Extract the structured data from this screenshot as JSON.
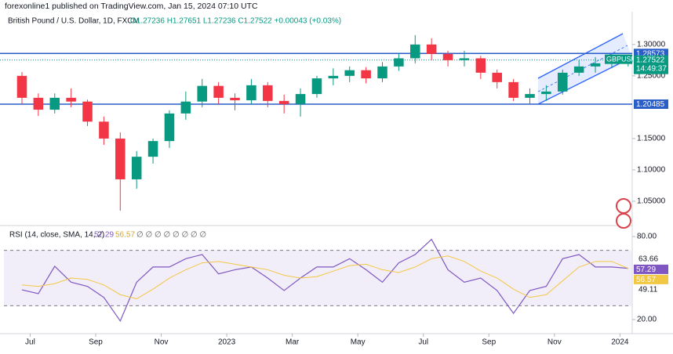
{
  "header": {
    "publisher": "forexonline1 published on TradingView.com, Jan 15, 2024 07:10 UTC",
    "symbol": "British Pound / U.S. Dollar, 1D, FXCM",
    "ohlc": "O1.27236 H1.27651 L1.27236 C1.27522 +0.00043 (+0.03%)"
  },
  "chart_data": [
    {
      "type": "candlestick",
      "open": [
        1.25,
        1.215,
        1.196,
        1.215,
        1.209,
        1.177,
        1.15,
        1.085,
        1.121,
        1.146,
        1.19,
        1.209,
        1.234,
        1.215,
        1.211,
        1.235,
        1.21,
        1.205,
        1.221,
        1.246,
        1.25,
        1.259,
        1.246,
        1.265,
        1.278,
        1.3,
        1.285,
        1.275,
        1.278,
        1.255,
        1.24,
        1.215,
        1.221,
        1.225,
        1.255,
        1.265,
        1.27,
        1.272
      ],
      "high": [
        1.256,
        1.222,
        1.222,
        1.23,
        1.212,
        1.185,
        1.16,
        1.13,
        1.15,
        1.195,
        1.225,
        1.245,
        1.24,
        1.222,
        1.245,
        1.24,
        1.22,
        1.23,
        1.25,
        1.262,
        1.265,
        1.264,
        1.272,
        1.285,
        1.315,
        1.31,
        1.29,
        1.29,
        1.282,
        1.26,
        1.245,
        1.23,
        1.235,
        1.26,
        1.275,
        1.28,
        1.285,
        1.282
      ],
      "low": [
        1.205,
        1.186,
        1.19,
        1.2,
        1.17,
        1.14,
        1.035,
        1.07,
        1.11,
        1.135,
        1.18,
        1.2,
        1.205,
        1.195,
        1.205,
        1.2,
        1.19,
        1.185,
        1.215,
        1.235,
        1.24,
        1.238,
        1.24,
        1.258,
        1.27,
        1.275,
        1.265,
        1.265,
        1.245,
        1.23,
        1.21,
        1.205,
        1.21,
        1.22,
        1.25,
        1.255,
        1.262,
        1.265
      ],
      "close": [
        1.215,
        1.196,
        1.215,
        1.209,
        1.177,
        1.15,
        1.085,
        1.121,
        1.146,
        1.19,
        1.209,
        1.234,
        1.215,
        1.211,
        1.235,
        1.21,
        1.205,
        1.221,
        1.246,
        1.25,
        1.259,
        1.246,
        1.265,
        1.278,
        1.3,
        1.285,
        1.275,
        1.278,
        1.255,
        1.24,
        1.215,
        1.221,
        1.225,
        1.255,
        1.265,
        1.27,
        1.272,
        1.275
      ],
      "up_color": "#089981",
      "down_color": "#f23645",
      "ylim": [
        1.015,
        1.336
      ],
      "yticks": [
        {
          "value": 1.05,
          "label": "1.05000"
        },
        {
          "value": 1.1,
          "label": "1.10000"
        },
        {
          "value": 1.15,
          "label": "1.15000"
        },
        {
          "value": 1.25,
          "label": "1.25000"
        },
        {
          "value": 1.3,
          "label": "1.30000"
        }
      ],
      "levels": [
        1.28573,
        1.20485
      ],
      "level_color": "#2a5ec8",
      "last": 1.27522,
      "last_color": "#089981",
      "symbol_tag": "GBPUSD",
      "countdown": "14:49:37"
    },
    {
      "type": "line",
      "legend": "RSI (14, close, SMA, 14, 2)",
      "legend_extra": "∅ ∅ ∅ ∅ ∅ ∅ ∅ ∅",
      "series": [
        {
          "color": "#7e57c2",
          "last": 57.29,
          "values": [
            41.5,
            38.7,
            58.5,
            47,
            44,
            36,
            19,
            47,
            58,
            58,
            64,
            67,
            53,
            56,
            58,
            50,
            41,
            50,
            58,
            58,
            64,
            56,
            47,
            61,
            67,
            78,
            56,
            47,
            50,
            41,
            24.5,
            41,
            44,
            64,
            67,
            58,
            58,
            57
          ]
        },
        {
          "color": "#f2c744",
          "last": 56.57,
          "values": [
            45,
            44,
            46,
            50,
            49,
            45,
            38,
            35,
            42,
            50,
            56,
            61,
            62,
            60,
            58,
            56,
            52,
            50,
            51,
            55,
            59,
            60,
            56,
            54,
            58,
            64,
            66,
            62,
            55,
            50,
            42,
            36,
            38,
            48,
            58,
            62,
            62,
            57
          ]
        }
      ],
      "band": [
        30,
        70
      ],
      "band_color": "#7e57c2",
      "tags": [
        63.66,
        49.11
      ],
      "ylim": [
        10.4,
        86.8
      ],
      "yticks": [
        {
          "value": 20,
          "label": "20.00"
        },
        {
          "value": 80,
          "label": "80.00"
        }
      ],
      "xlim": [
        -0.6,
        37.7
      ],
      "xticks": [
        {
          "value": 1,
          "label": "Jul"
        },
        {
          "value": 5,
          "label": "Sep"
        },
        {
          "value": 9,
          "label": "Nov"
        },
        {
          "value": 13,
          "label": "2023"
        },
        {
          "value": 17,
          "label": "Mar"
        },
        {
          "value": 21,
          "label": "May"
        },
        {
          "value": 25,
          "label": "Jul"
        },
        {
          "value": 29,
          "label": "Sep"
        },
        {
          "value": 33,
          "label": "Nov"
        },
        {
          "value": 37,
          "label": "2024"
        }
      ]
    }
  ]
}
